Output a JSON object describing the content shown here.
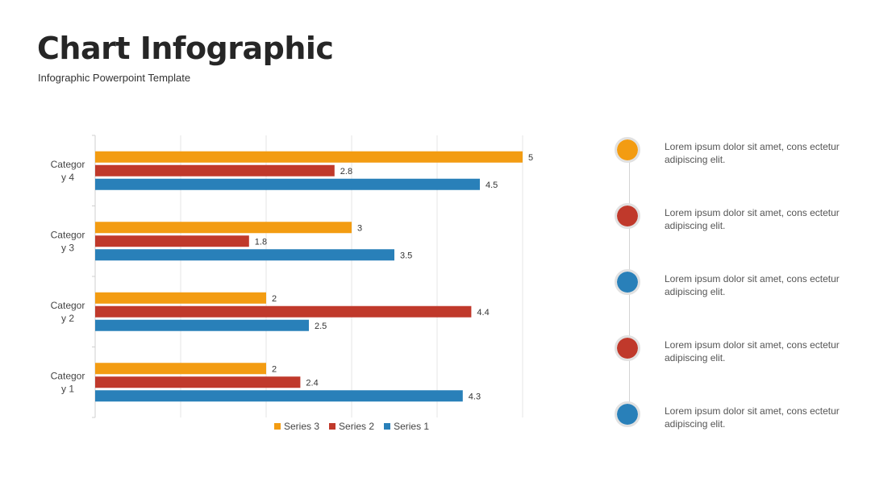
{
  "header": {
    "title": "Chart Infographic",
    "subtitle": "Infographic Powerpoint Template"
  },
  "colors": {
    "series3": "#F39C12",
    "series2": "#C0392B",
    "series1": "#2980B9",
    "grid": "#e6e6e6",
    "dot_border": "#e1e1e1"
  },
  "chart_data": {
    "type": "bar",
    "orientation": "horizontal",
    "categories": [
      "Categor\ny 1",
      "Categor\ny 2",
      "Categor\ny 3",
      "Categor\ny 4"
    ],
    "series": [
      {
        "name": "Series 3",
        "values": [
          2,
          2,
          3,
          5
        ],
        "color": "#F39C12"
      },
      {
        "name": "Series 2",
        "values": [
          2.4,
          4.4,
          1.8,
          2.8
        ],
        "color": "#C0392B"
      },
      {
        "name": "Series 1",
        "values": [
          4.3,
          2.5,
          3.5,
          4.5
        ],
        "color": "#2980B9"
      }
    ],
    "xlim": [
      0,
      6
    ],
    "grid": true,
    "legend": "bottom"
  },
  "legend": [
    "Series 3",
    "Series 2",
    "Series 1"
  ],
  "timeline": {
    "items": [
      {
        "text": "Lorem ipsum dolor sit amet, cons ectetur adipiscing elit.",
        "color": "#F39C12"
      },
      {
        "text": "Lorem ipsum dolor sit amet, cons ectetur adipiscing elit.",
        "color": "#C0392B"
      },
      {
        "text": "Lorem ipsum dolor sit amet, cons ectetur adipiscing elit.",
        "color": "#2980B9"
      },
      {
        "text": "Lorem ipsum dolor sit amet, cons ectetur adipiscing elit.",
        "color": "#C0392B"
      },
      {
        "text": "Lorem ipsum dolor sit amet, cons ectetur adipiscing elit.",
        "color": "#2980B9"
      }
    ]
  }
}
